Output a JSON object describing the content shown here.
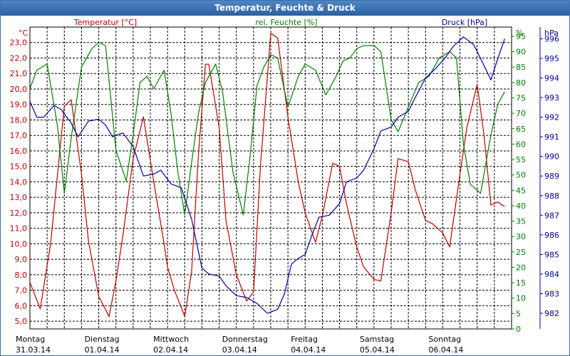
{
  "window": {
    "title": "Temperatur, Feuchte & Druck"
  },
  "colors": {
    "temperature": "#c00000",
    "humidity": "#008000",
    "pressure": "#0000a0",
    "grid": "#000000",
    "title_bar": "#2c5f9e"
  },
  "chart_data": {
    "type": "line",
    "grid": true,
    "x_range": [
      0,
      7
    ],
    "x_unit": "days from Montag 31.03.14 00:00",
    "days": [
      {
        "weekday": "Montag",
        "date": "31.03.14"
      },
      {
        "weekday": "Dienstag",
        "date": "01.04.14"
      },
      {
        "weekday": "Mittwoch",
        "date": "02.04.14"
      },
      {
        "weekday": "Donnerstag",
        "date": "03.04.14"
      },
      {
        "weekday": "Freitag",
        "date": "04.04.14"
      },
      {
        "weekday": "Samstag",
        "date": "05.04.14"
      },
      {
        "weekday": "Sonntag",
        "date": "06.04.14"
      }
    ],
    "axes": {
      "temperature": {
        "unit": "°C",
        "ylim": [
          4.5,
          24.0
        ],
        "ticks": [
          "5,0",
          "6,0",
          "7,0",
          "8,0",
          "9,0",
          "10,0",
          "11,0",
          "12,0",
          "13,0",
          "14,0",
          "15,0",
          "16,0",
          "17,0",
          "18,0",
          "19,0",
          "20,0",
          "21,0",
          "22,0",
          "23,0"
        ]
      },
      "humidity": {
        "unit": "%",
        "ylim": [
          0,
          98
        ],
        "ticks": [
          "0",
          "5",
          "10",
          "15",
          "20",
          "25",
          "30",
          "35",
          "40",
          "45",
          "50",
          "55",
          "60",
          "65",
          "70",
          "75",
          "80",
          "85",
          "90",
          "95"
        ]
      },
      "pressure": {
        "unit": "hPa",
        "ylim": [
          981.2,
          996.6
        ],
        "ticks": [
          "982",
          "983",
          "984",
          "985",
          "986",
          "987",
          "988",
          "989",
          "990",
          "991",
          "992",
          "993",
          "994",
          "995",
          "996"
        ]
      }
    },
    "series": [
      {
        "name": "Temperatur [°C]",
        "axis": "temperature",
        "x": [
          0,
          0.15,
          0.3,
          0.5,
          0.6,
          0.75,
          0.85,
          1.0,
          1.15,
          1.25,
          1.35,
          1.5,
          1.65,
          1.8,
          1.95,
          2.0,
          2.1,
          2.25,
          2.35,
          2.45,
          2.55,
          2.6,
          2.75,
          2.85,
          3.0,
          3.15,
          3.25,
          3.35,
          3.5,
          3.6,
          3.75,
          3.9,
          4.0,
          4.15,
          4.25,
          4.4,
          4.5,
          4.6,
          4.75,
          4.85,
          5.0,
          5.1,
          5.25,
          5.35,
          5.5,
          5.6,
          5.75,
          5.85,
          6.0,
          6.1,
          6.25,
          6.35,
          6.5,
          6.6,
          6.7,
          6.8,
          6.9
        ],
        "y": [
          7.5,
          5.8,
          10.0,
          18.9,
          19.3,
          14.5,
          10.2,
          6.6,
          5.3,
          7.6,
          10.5,
          15.5,
          18.2,
          14.0,
          10.0,
          8.5,
          7.0,
          5.3,
          8.2,
          15.8,
          21.6,
          21.6,
          17.5,
          11.5,
          8.0,
          6.3,
          6.9,
          15.0,
          23.6,
          23.3,
          18.2,
          14.0,
          12.0,
          10.1,
          11.8,
          15.2,
          15.0,
          12.6,
          9.8,
          8.5,
          7.7,
          7.6,
          12.0,
          15.5,
          15.3,
          13.5,
          11.5,
          11.3,
          10.7,
          9.8,
          14.5,
          17.5,
          20.3,
          17.0,
          12.5,
          12.7,
          12.4
        ]
      },
      {
        "name": "rel. Feuchte [%]",
        "axis": "humidity",
        "x": [
          0,
          0.1,
          0.25,
          0.4,
          0.5,
          0.6,
          0.75,
          0.9,
          1.0,
          1.1,
          1.25,
          1.4,
          1.5,
          1.6,
          1.7,
          1.8,
          1.95,
          2.05,
          2.15,
          2.25,
          2.35,
          2.45,
          2.55,
          2.7,
          2.8,
          2.95,
          3.1,
          3.2,
          3.3,
          3.4,
          3.5,
          3.6,
          3.75,
          3.9,
          4.0,
          4.15,
          4.3,
          4.45,
          4.55,
          4.65,
          4.75,
          4.85,
          5.0,
          5.1,
          5.25,
          5.35,
          5.5,
          5.65,
          5.8,
          5.95,
          6.1,
          6.2,
          6.3,
          6.4,
          6.55,
          6.7,
          6.8,
          6.9
        ],
        "y": [
          78,
          84,
          86,
          66,
          44,
          62,
          85,
          91,
          93,
          92,
          58,
          48,
          63,
          80,
          82,
          78,
          84,
          70,
          51,
          37,
          54,
          70,
          80,
          86,
          77,
          51,
          37,
          56,
          79,
          85,
          89,
          88,
          72,
          82,
          86,
          84,
          76,
          82,
          87,
          88,
          91,
          92,
          92,
          90,
          68,
          64,
          72,
          80,
          82,
          88,
          90,
          88,
          60,
          47,
          44,
          63,
          73,
          77
        ]
      },
      {
        "name": "Druck [hPa]",
        "axis": "pressure",
        "x": [
          0,
          0.1,
          0.2,
          0.35,
          0.45,
          0.6,
          0.7,
          0.85,
          1.0,
          1.1,
          1.2,
          1.35,
          1.5,
          1.65,
          1.8,
          1.9,
          2.05,
          2.2,
          2.35,
          2.5,
          2.6,
          2.75,
          2.85,
          3.0,
          3.15,
          3.3,
          3.45,
          3.6,
          3.7,
          3.8,
          3.9,
          4.0,
          4.1,
          4.2,
          4.35,
          4.5,
          4.6,
          4.75,
          4.85,
          5.0,
          5.1,
          5.25,
          5.35,
          5.5,
          5.6,
          5.75,
          5.9,
          6.05,
          6.15,
          6.3,
          6.45,
          6.55,
          6.7,
          6.8,
          6.9
        ],
        "y": [
          992.8,
          992.0,
          992.0,
          992.6,
          992.4,
          991.7,
          991.0,
          991.8,
          991.9,
          991.6,
          991.0,
          991.2,
          990.5,
          989.0,
          989.1,
          989.3,
          988.6,
          988.4,
          986.8,
          984.3,
          984.0,
          983.9,
          983.4,
          982.9,
          982.8,
          982.5,
          982.0,
          982.2,
          983.0,
          984.5,
          984.8,
          985.0,
          986.0,
          986.9,
          987.0,
          987.6,
          988.7,
          988.9,
          989.3,
          990.4,
          991.3,
          991.5,
          992.0,
          992.3,
          993.0,
          994.0,
          994.5,
          995.1,
          995.6,
          996.1,
          995.7,
          995.0,
          993.9,
          995.0,
          996.0
        ]
      }
    ]
  }
}
